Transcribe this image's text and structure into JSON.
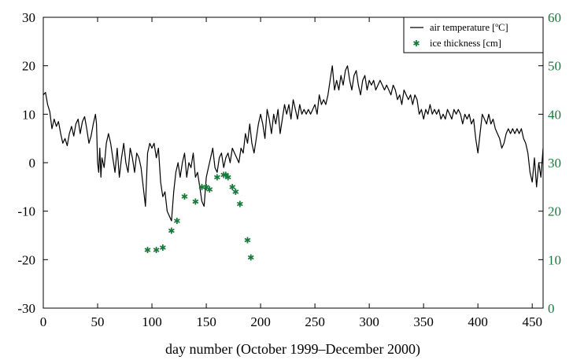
{
  "chart_data": {
    "type": "line",
    "title": "",
    "xlabel": "day number (October 1999–December 2000)",
    "xlim": [
      0,
      460
    ],
    "xticks": [
      0,
      50,
      100,
      150,
      200,
      250,
      300,
      350,
      400,
      450
    ],
    "y_left": {
      "label": "",
      "lim": [
        -30,
        30
      ],
      "ticks": [
        -30,
        -20,
        -10,
        0,
        10,
        20,
        30
      ],
      "color": "#000000"
    },
    "y_right": {
      "label": "",
      "lim": [
        0,
        60
      ],
      "ticks": [
        0,
        10,
        20,
        30,
        40,
        50,
        60
      ],
      "color": "#1a7a3c"
    },
    "grid": false,
    "legend_position": "top-right",
    "series": [
      {
        "name": "air temperature [ºC]",
        "kind": "line",
        "axis": "left",
        "color": "#000000",
        "points": [
          [
            0,
            14
          ],
          [
            2,
            14.5
          ],
          [
            4,
            12
          ],
          [
            6,
            10.5
          ],
          [
            8,
            7
          ],
          [
            10,
            9
          ],
          [
            12,
            7.5
          ],
          [
            14,
            8.5
          ],
          [
            16,
            6
          ],
          [
            18,
            4
          ],
          [
            20,
            5
          ],
          [
            22,
            3.5
          ],
          [
            24,
            6
          ],
          [
            26,
            7.5
          ],
          [
            28,
            5.5
          ],
          [
            30,
            8
          ],
          [
            32,
            9
          ],
          [
            34,
            6
          ],
          [
            36,
            8.5
          ],
          [
            38,
            9.5
          ],
          [
            40,
            7
          ],
          [
            42,
            4
          ],
          [
            44,
            5.5
          ],
          [
            46,
            8
          ],
          [
            48,
            10
          ],
          [
            49,
            8
          ],
          [
            50,
            0
          ],
          [
            51,
            -2
          ],
          [
            52,
            3
          ],
          [
            53,
            -3
          ],
          [
            54,
            1
          ],
          [
            56,
            -1
          ],
          [
            58,
            4
          ],
          [
            60,
            6
          ],
          [
            62,
            4
          ],
          [
            64,
            1
          ],
          [
            66,
            -2
          ],
          [
            68,
            3
          ],
          [
            70,
            -3
          ],
          [
            72,
            1
          ],
          [
            74,
            4
          ],
          [
            76,
            0
          ],
          [
            78,
            -2
          ],
          [
            80,
            3
          ],
          [
            82,
            1
          ],
          [
            84,
            -2
          ],
          [
            86,
            2
          ],
          [
            88,
            1
          ],
          [
            90,
            -1
          ],
          [
            92,
            -5
          ],
          [
            94,
            -9
          ],
          [
            96,
            2
          ],
          [
            98,
            4
          ],
          [
            100,
            3
          ],
          [
            102,
            4
          ],
          [
            104,
            1
          ],
          [
            106,
            3
          ],
          [
            108,
            -4
          ],
          [
            110,
            -7
          ],
          [
            112,
            -6
          ],
          [
            114,
            -10
          ],
          [
            116,
            -11
          ],
          [
            118,
            -12
          ],
          [
            120,
            -6
          ],
          [
            122,
            -2
          ],
          [
            124,
            0
          ],
          [
            126,
            -3
          ],
          [
            128,
            0
          ],
          [
            130,
            2
          ],
          [
            132,
            -3
          ],
          [
            134,
            0
          ],
          [
            136,
            -1
          ],
          [
            138,
            2
          ],
          [
            140,
            -3
          ],
          [
            142,
            -2
          ],
          [
            144,
            -5
          ],
          [
            146,
            -8
          ],
          [
            148,
            -9
          ],
          [
            150,
            -3
          ],
          [
            152,
            -1
          ],
          [
            154,
            1
          ],
          [
            156,
            3
          ],
          [
            158,
            -1
          ],
          [
            160,
            -2
          ],
          [
            162,
            1
          ],
          [
            164,
            2
          ],
          [
            166,
            -1
          ],
          [
            168,
            1
          ],
          [
            170,
            2
          ],
          [
            172,
            0
          ],
          [
            174,
            3
          ],
          [
            176,
            2
          ],
          [
            178,
            1
          ],
          [
            180,
            0
          ],
          [
            182,
            3
          ],
          [
            184,
            2
          ],
          [
            186,
            6
          ],
          [
            188,
            4
          ],
          [
            190,
            8
          ],
          [
            192,
            4
          ],
          [
            194,
            2
          ],
          [
            196,
            5
          ],
          [
            198,
            8
          ],
          [
            200,
            10
          ],
          [
            202,
            8
          ],
          [
            204,
            5
          ],
          [
            206,
            11
          ],
          [
            208,
            9
          ],
          [
            210,
            6
          ],
          [
            212,
            10
          ],
          [
            214,
            8
          ],
          [
            216,
            11
          ],
          [
            218,
            6
          ],
          [
            220,
            9
          ],
          [
            222,
            12
          ],
          [
            224,
            10
          ],
          [
            226,
            12
          ],
          [
            228,
            9
          ],
          [
            230,
            13
          ],
          [
            232,
            11
          ],
          [
            234,
            9
          ],
          [
            236,
            12
          ],
          [
            238,
            10
          ],
          [
            240,
            11
          ],
          [
            242,
            10
          ],
          [
            244,
            11
          ],
          [
            246,
            10
          ],
          [
            248,
            11
          ],
          [
            250,
            12
          ],
          [
            252,
            10
          ],
          [
            254,
            14
          ],
          [
            256,
            12
          ],
          [
            258,
            13
          ],
          [
            260,
            12
          ],
          [
            262,
            14
          ],
          [
            264,
            17
          ],
          [
            266,
            20
          ],
          [
            268,
            15
          ],
          [
            270,
            17
          ],
          [
            272,
            15
          ],
          [
            274,
            18
          ],
          [
            276,
            16
          ],
          [
            278,
            19
          ],
          [
            280,
            20
          ],
          [
            282,
            17
          ],
          [
            284,
            15
          ],
          [
            286,
            18
          ],
          [
            288,
            19
          ],
          [
            290,
            16
          ],
          [
            292,
            14
          ],
          [
            294,
            17
          ],
          [
            296,
            18
          ],
          [
            298,
            15
          ],
          [
            300,
            17
          ],
          [
            302,
            16
          ],
          [
            304,
            17
          ],
          [
            306,
            15
          ],
          [
            308,
            16
          ],
          [
            310,
            17
          ],
          [
            312,
            16
          ],
          [
            314,
            15
          ],
          [
            316,
            16
          ],
          [
            318,
            15
          ],
          [
            320,
            14
          ],
          [
            322,
            16
          ],
          [
            324,
            15
          ],
          [
            326,
            13
          ],
          [
            328,
            14
          ],
          [
            330,
            12
          ],
          [
            332,
            15
          ],
          [
            334,
            14
          ],
          [
            336,
            13
          ],
          [
            338,
            14
          ],
          [
            340,
            12
          ],
          [
            342,
            14
          ],
          [
            344,
            13
          ],
          [
            346,
            10
          ],
          [
            348,
            11
          ],
          [
            350,
            9
          ],
          [
            352,
            11
          ],
          [
            354,
            10
          ],
          [
            356,
            12
          ],
          [
            358,
            10
          ],
          [
            360,
            11
          ],
          [
            362,
            10
          ],
          [
            364,
            11
          ],
          [
            366,
            9
          ],
          [
            368,
            10
          ],
          [
            370,
            9
          ],
          [
            372,
            11
          ],
          [
            374,
            10
          ],
          [
            376,
            9
          ],
          [
            378,
            11
          ],
          [
            380,
            10
          ],
          [
            382,
            11
          ],
          [
            384,
            10
          ],
          [
            386,
            8
          ],
          [
            388,
            10
          ],
          [
            390,
            9
          ],
          [
            392,
            10
          ],
          [
            394,
            8
          ],
          [
            396,
            9
          ],
          [
            398,
            5
          ],
          [
            400,
            2
          ],
          [
            402,
            6
          ],
          [
            404,
            10
          ],
          [
            406,
            9
          ],
          [
            408,
            8
          ],
          [
            410,
            10
          ],
          [
            412,
            8
          ],
          [
            414,
            9
          ],
          [
            416,
            7
          ],
          [
            418,
            6
          ],
          [
            420,
            5
          ],
          [
            422,
            3
          ],
          [
            424,
            4
          ],
          [
            426,
            6
          ],
          [
            428,
            7
          ],
          [
            430,
            6
          ],
          [
            432,
            7
          ],
          [
            434,
            6
          ],
          [
            436,
            7
          ],
          [
            438,
            6
          ],
          [
            440,
            7
          ],
          [
            442,
            5
          ],
          [
            444,
            4
          ],
          [
            446,
            2
          ],
          [
            448,
            -2
          ],
          [
            450,
            -4
          ],
          [
            452,
            1
          ],
          [
            454,
            -5
          ],
          [
            456,
            0
          ],
          [
            458,
            -3
          ],
          [
            460,
            3
          ]
        ]
      },
      {
        "name": "ice thickness [cm]",
        "kind": "scatter",
        "axis": "right",
        "color": "#1a7a3c",
        "points": [
          [
            96,
            12
          ],
          [
            104,
            12
          ],
          [
            110,
            12.5
          ],
          [
            118,
            16
          ],
          [
            123,
            18
          ],
          [
            130,
            23
          ],
          [
            140,
            22
          ],
          [
            146,
            25
          ],
          [
            150,
            25
          ],
          [
            153,
            24.5
          ],
          [
            160,
            27
          ],
          [
            166,
            27.5
          ],
          [
            168,
            27.5
          ],
          [
            170,
            27
          ],
          [
            174,
            25
          ],
          [
            177,
            24
          ],
          [
            181,
            21.5
          ],
          [
            188,
            14
          ],
          [
            191,
            10.5
          ]
        ]
      }
    ]
  }
}
